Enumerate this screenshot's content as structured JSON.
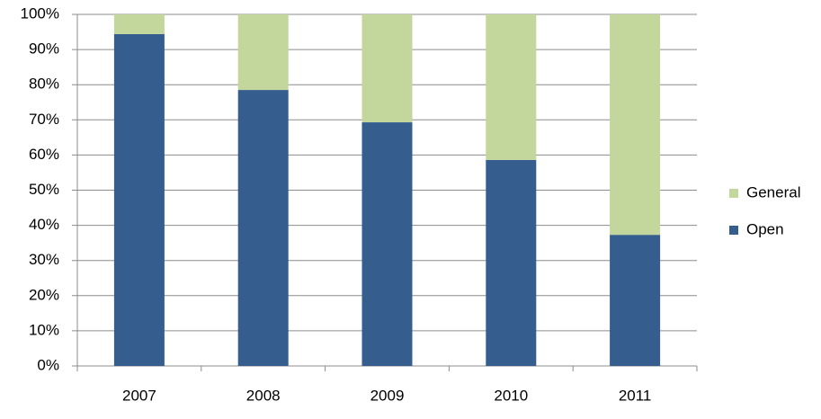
{
  "chart_data": {
    "type": "stacked-bar",
    "categories": [
      "2007",
      "2008",
      "2009",
      "2010",
      "2011"
    ],
    "series": [
      {
        "name": "Open",
        "color": "#355e8f",
        "values": [
          94.4,
          78.5,
          69.3,
          58.6,
          37.3
        ]
      },
      {
        "name": "General",
        "color": "#c3d69b",
        "values": [
          5.6,
          21.5,
          30.7,
          41.4,
          62.7
        ]
      }
    ],
    "ylim": [
      0,
      100
    ],
    "yticks": [
      {
        "value": 0,
        "label": "0%"
      },
      {
        "value": 10,
        "label": "10%"
      },
      {
        "value": 20,
        "label": "20%"
      },
      {
        "value": 30,
        "label": "30%"
      },
      {
        "value": 40,
        "label": "40%"
      },
      {
        "value": 50,
        "label": "50%"
      },
      {
        "value": 60,
        "label": "60%"
      },
      {
        "value": 70,
        "label": "70%"
      },
      {
        "value": 80,
        "label": "80%"
      },
      {
        "value": 90,
        "label": "90%"
      },
      {
        "value": 100,
        "label": "100%"
      }
    ],
    "grid": true,
    "legend": "right"
  }
}
